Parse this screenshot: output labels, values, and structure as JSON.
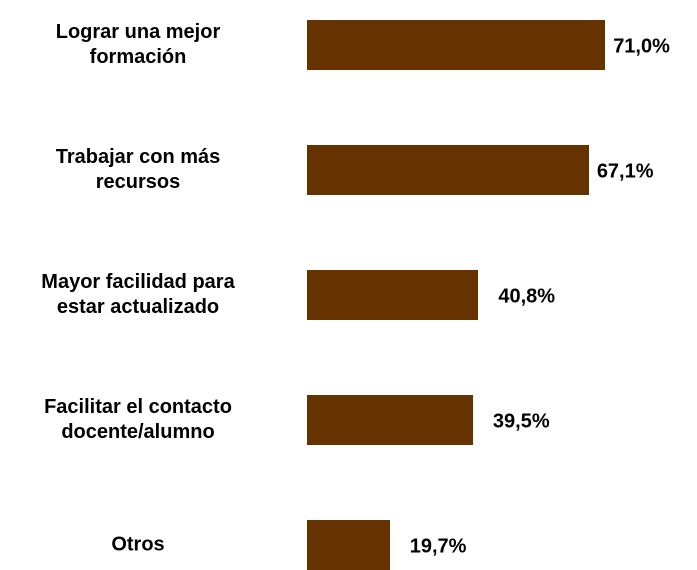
{
  "chart_data": {
    "type": "bar",
    "orientation": "horizontal",
    "categories": [
      "Lograr una mejor\nformación",
      "Trabajar con más\nrecursos",
      "Mayor facilidad para\nestar actualizado",
      "Facilitar el contacto\ndocente/alumno",
      "Otros"
    ],
    "values": [
      71.0,
      67.1,
      40.8,
      39.5,
      19.7
    ],
    "value_labels": [
      "71,0%",
      "67,1%",
      "40,8%",
      "39,5%",
      "19,7%"
    ],
    "color": "#663300"
  }
}
